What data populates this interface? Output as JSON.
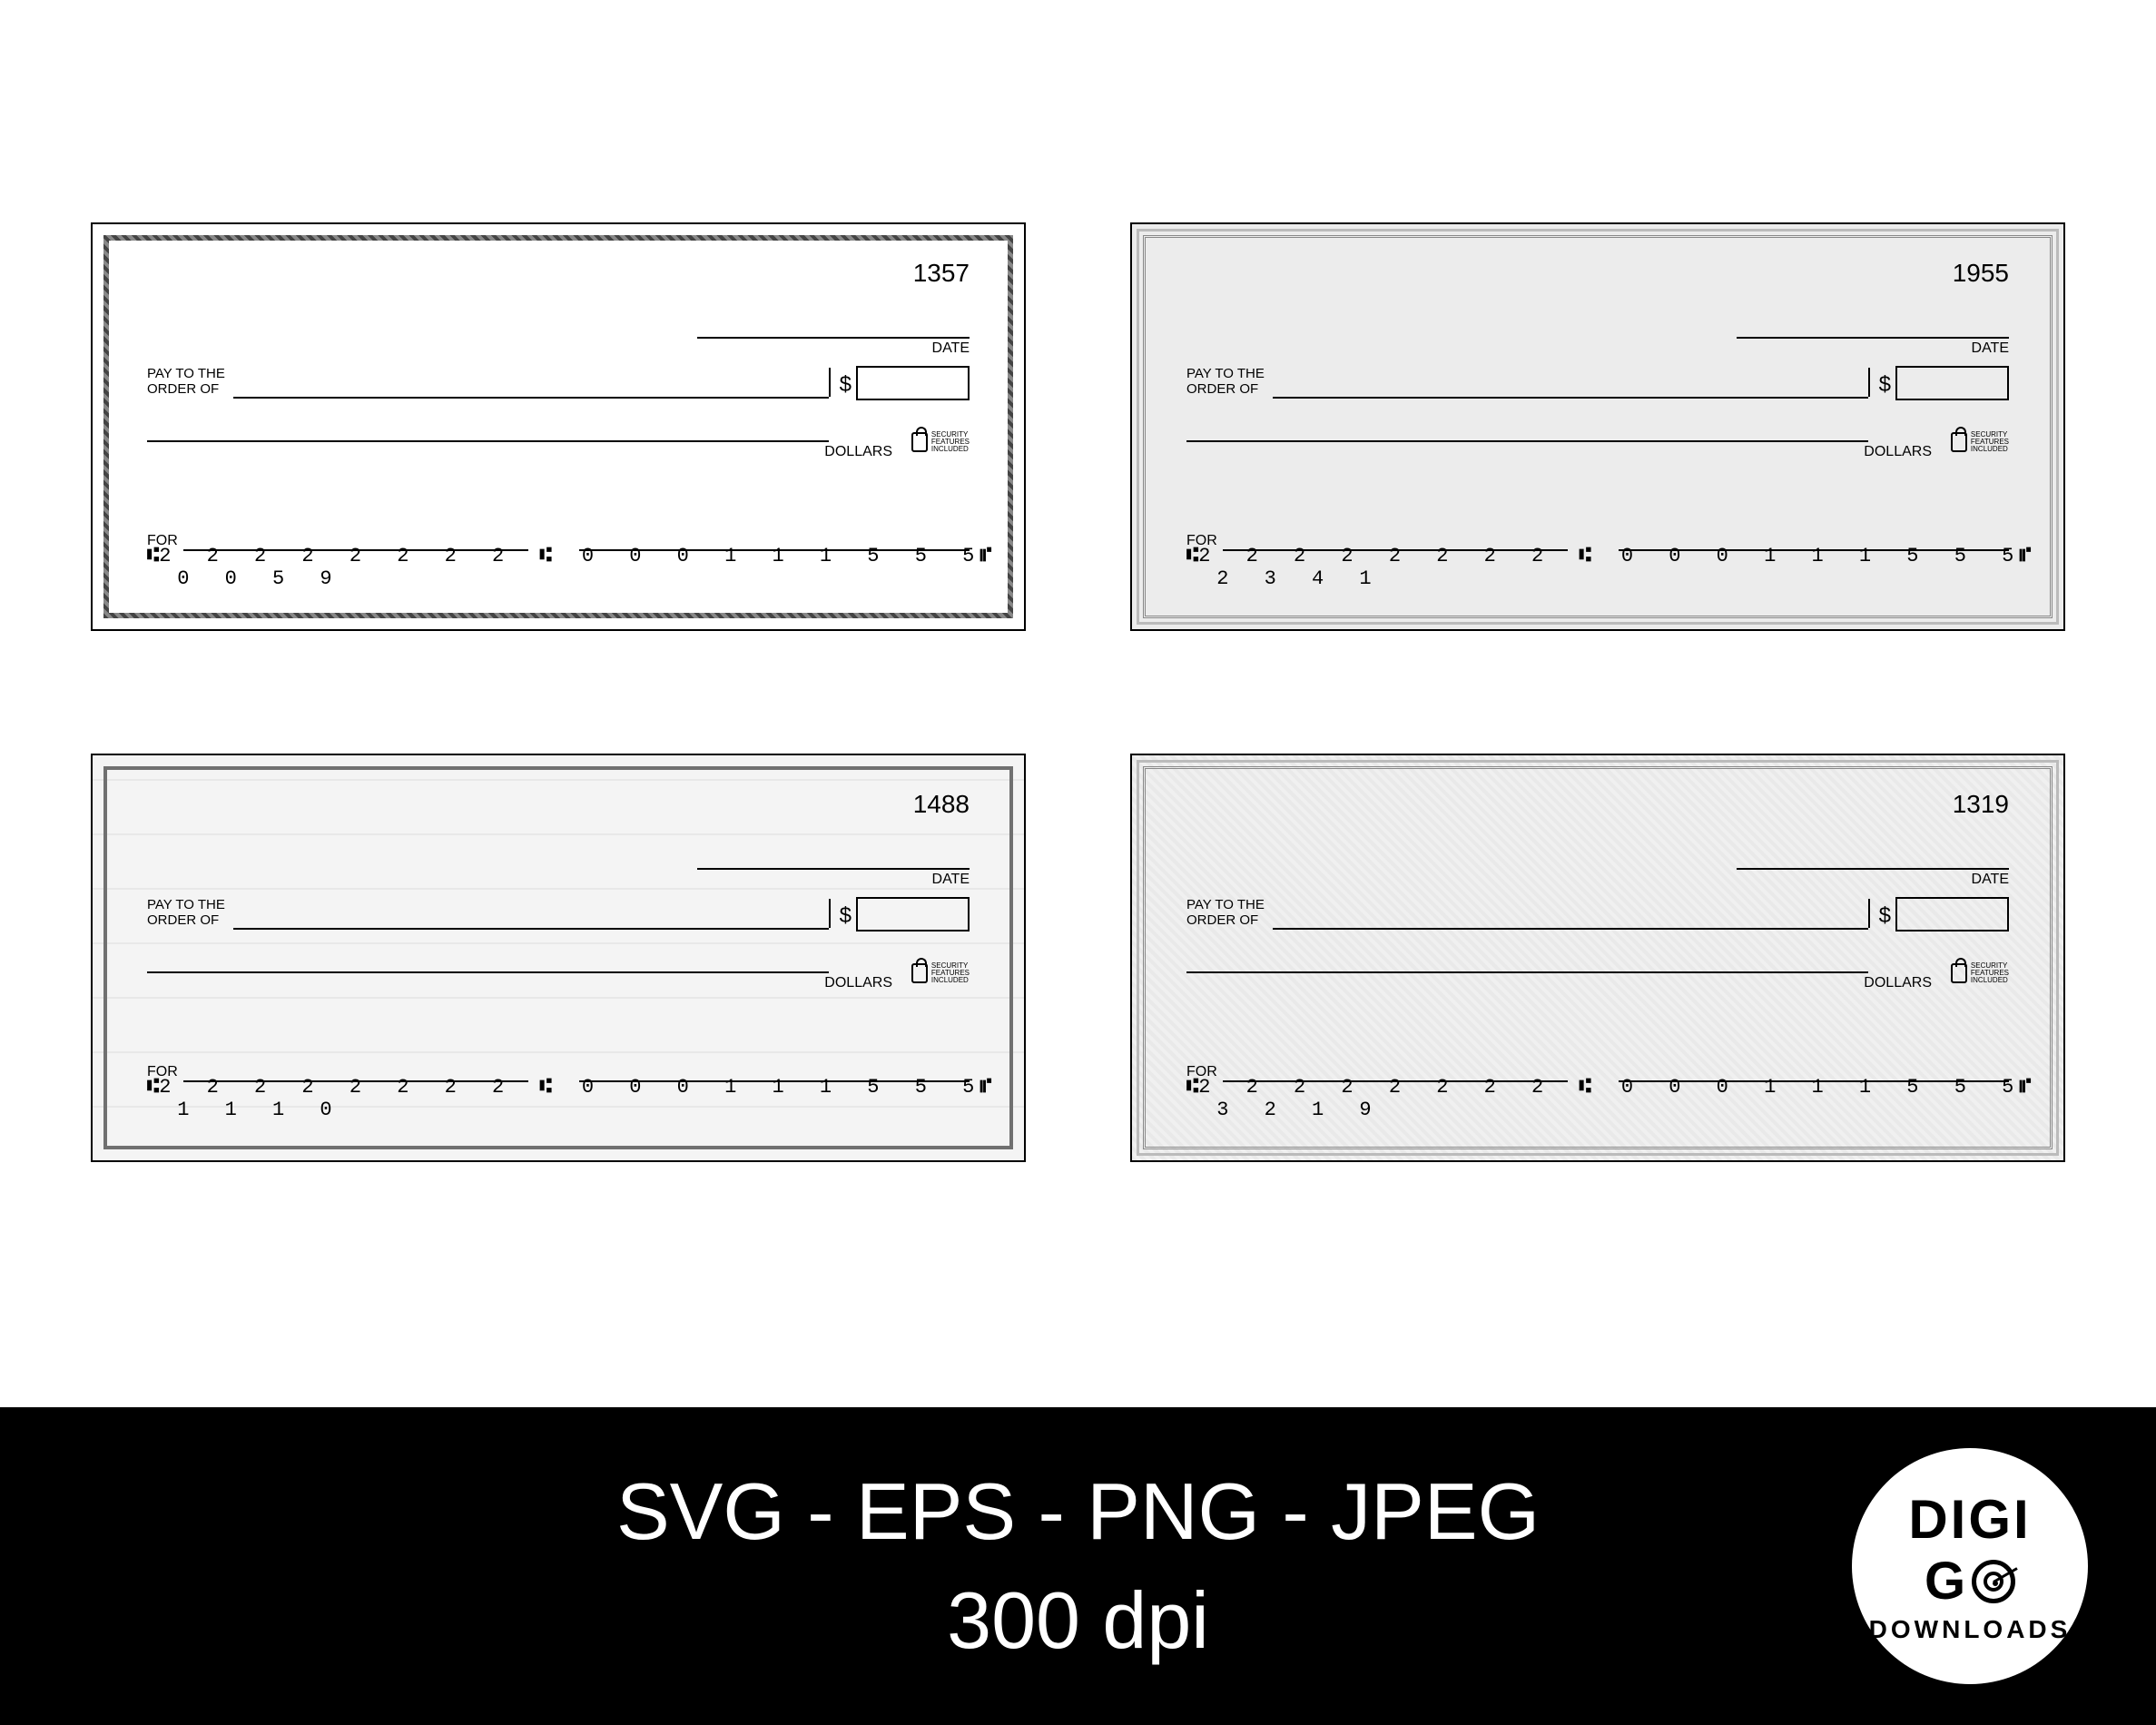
{
  "labels": {
    "date": "DATE",
    "payto_line1": "PAY TO THE",
    "payto_line2": "ORDER OF",
    "dollar_sign": "$",
    "dollars": "DOLLARS",
    "security_l1": "SECURITY",
    "security_l2": "FEATURES",
    "security_l3": "INCLUDED",
    "for": "FOR"
  },
  "checks": [
    {
      "number": "1357",
      "routing": "2 2 2 2 2 2 2 2",
      "account": "0 0 0   1 1 1   5 5 5",
      "checknum": "0 0 5 9",
      "border_style": "deco",
      "background": "plain"
    },
    {
      "number": "1955",
      "routing": "2 2 2 2 2 2 2 2",
      "account": "0 0 0   1 1 1   5 5 5",
      "checknum": "2 3 4 1",
      "border_style": "double",
      "background": "grey"
    },
    {
      "number": "1488",
      "routing": "2 2 2 2 2 2 2 2",
      "account": "0 0 0   1 1 1   5 5 5",
      "checknum": "1 1 1 0",
      "border_style": "plain",
      "background": "grid"
    },
    {
      "number": "1319",
      "routing": "2 2 2 2 2 2 2 2",
      "account": "0 0 0   1 1 1   5 5 5",
      "checknum": "3 2 1 9",
      "border_style": "double",
      "background": "diag"
    }
  ],
  "footer": {
    "formats": "SVG - EPS - PNG - JPEG",
    "dpi": "300 dpi",
    "logo_l1": "DIGI",
    "logo_l2": "G",
    "logo_l3": "DOWNLOADS"
  },
  "colors": {
    "page_bg": "#ffffff",
    "footer_bg": "#000000",
    "footer_fg": "#ffffff",
    "check_border": "#000000",
    "grey_bg": "#ececec"
  }
}
